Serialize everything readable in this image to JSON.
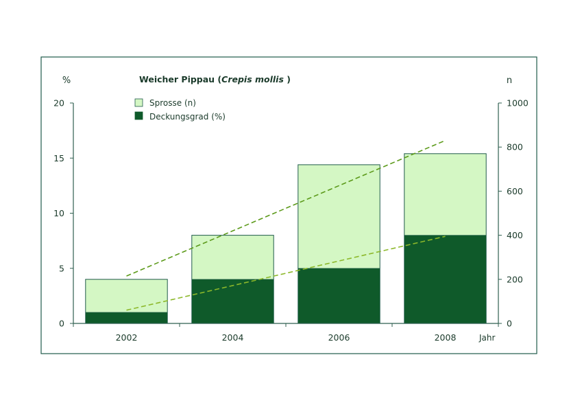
{
  "chart_data": {
    "type": "bar",
    "title_main": "Weicher Pippau (",
    "title_italic": "Crepis mollis",
    "title_close": " )",
    "left_axis_unit": "%",
    "right_axis_unit": "n",
    "xlabel": "Jahr",
    "categories": [
      "2002",
      "2004",
      "2006",
      "2008"
    ],
    "left_ticks": [
      "0",
      "5",
      "10",
      "15",
      "20"
    ],
    "right_ticks": [
      "0",
      "200",
      "400",
      "600",
      "800",
      "1000"
    ],
    "ylim_left": [
      0,
      20
    ],
    "ylim_right": [
      0,
      1000
    ],
    "stacked": true,
    "series": [
      {
        "name": "Sprosse (n)",
        "axis": "right",
        "values": [
          200,
          400,
          720,
          770
        ],
        "color": "#d4f7c4"
      },
      {
        "name": "Deckungsgrad (%)",
        "axis": "left",
        "values": [
          1,
          4,
          5,
          8
        ],
        "color": "#0f5a2a"
      }
    ],
    "trendlines": [
      {
        "series": "Sprosse (n)",
        "axis": "right",
        "from": [
          2002,
          215
        ],
        "to": [
          2008,
          830
        ],
        "color": "#5c9a1a"
      },
      {
        "series": "Deckungsgrad (%)",
        "axis": "left",
        "from": [
          2002,
          1.2
        ],
        "to": [
          2008,
          7.9
        ],
        "color": "#8cb82a"
      }
    ],
    "legend_position": "top-left",
    "grid": false,
    "colors": {
      "frame": "#1f5a4a",
      "axis": "#2f5f4f",
      "text": "#1a3a2a"
    }
  }
}
